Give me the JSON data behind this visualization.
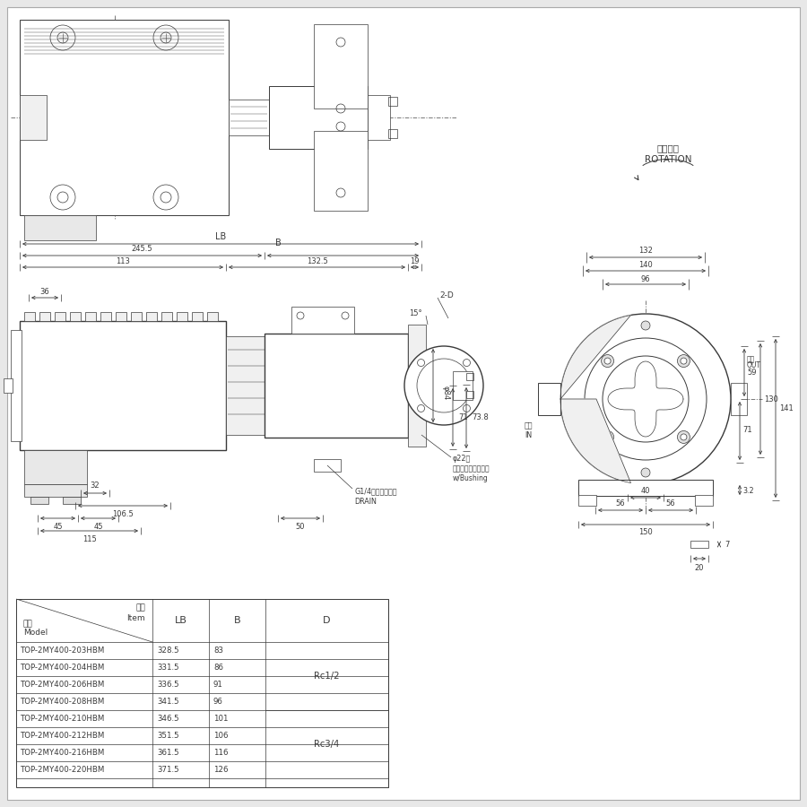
{
  "bg_color": "#ffffff",
  "line_color": "#3a3a3a",
  "table_rows": [
    [
      "TOP-2MY400-203HBM",
      "328.5",
      "83"
    ],
    [
      "TOP-2MY400-204HBM",
      "331.5",
      "86"
    ],
    [
      "TOP-2MY400-206HBM",
      "336.5",
      "91"
    ],
    [
      "TOP-2MY400-208HBM",
      "341.5",
      "96"
    ],
    [
      "TOP-2MY400-210HBM",
      "346.5",
      "101"
    ],
    [
      "TOP-2MY400-212HBM",
      "351.5",
      "106"
    ],
    [
      "TOP-2MY400-216HBM",
      "361.5",
      "116"
    ],
    [
      "TOP-2MY400-220HBM",
      "371.5",
      "126"
    ]
  ],
  "table_item_jp": "項目",
  "table_item_en": "Item",
  "table_row_header_jp": "形式",
  "table_row_header_en": "Model",
  "d_col_rc12": "Rc1/2",
  "d_col_rc34": "Rc3/4",
  "rotation_jp": "回転方向",
  "rotation_en": "ROTATION"
}
